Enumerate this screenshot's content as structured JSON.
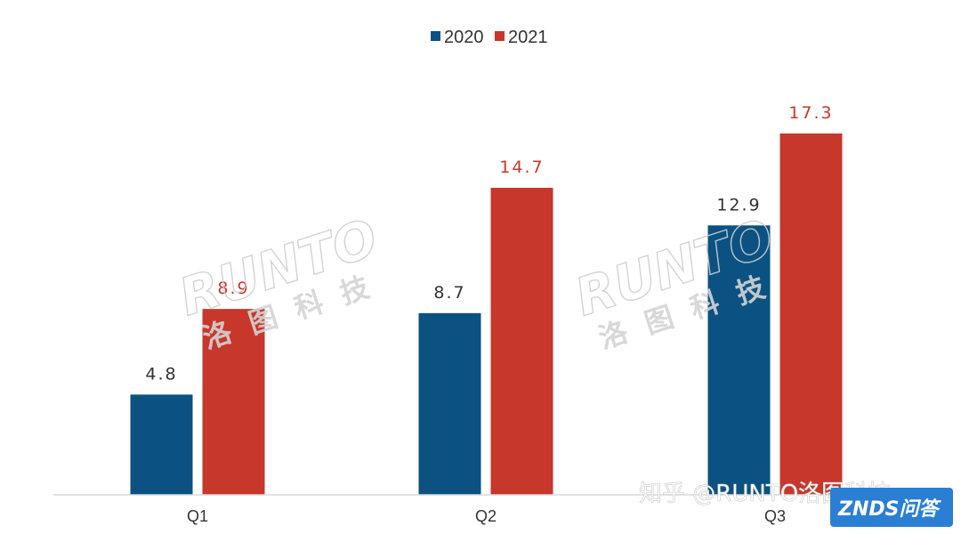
{
  "chart_data": {
    "type": "bar",
    "title": "",
    "xlabel": "",
    "ylabel": "",
    "categories": [
      "Q1",
      "Q2",
      "Q3"
    ],
    "series": [
      {
        "name": "2020",
        "values": [
          4.8,
          8.7,
          12.9
        ],
        "labels": [
          "4.8",
          "8.7",
          "12.9"
        ],
        "color": "#0b5282"
      },
      {
        "name": "2021",
        "values": [
          8.9,
          14.7,
          17.3
        ],
        "labels": [
          "8.9",
          "14.7",
          "17.3"
        ],
        "color": "#c8372b"
      }
    ],
    "ylim": [
      0,
      20
    ],
    "grid": false,
    "legend": "top-center",
    "value_label_colors": {
      "2020": "#333333",
      "2021": "#c8372b"
    }
  },
  "watermark": {
    "brand": "RUNTO",
    "brand_cn": "洛图科技",
    "credit": "知乎 @RUNTO洛图科技",
    "badge": "ZNDS问答"
  }
}
